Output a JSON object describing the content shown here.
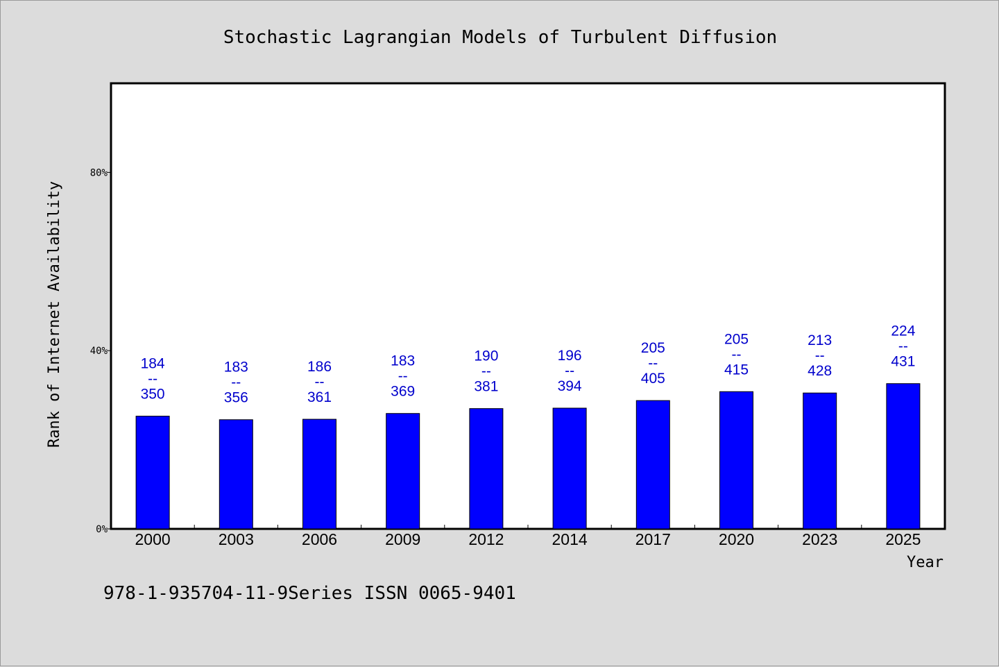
{
  "colors": {
    "background": "#dcdcdc",
    "plot_background": "#ffffff",
    "bar_fill": "#0000ff",
    "label_color": "#0000cc"
  },
  "footer": "978-1-935704-11-9Series ISSN 0065-9401",
  "chart_data": {
    "type": "bar",
    "title": "Stochastic Lagrangian Models of Turbulent Diffusion",
    "xlabel": "Year",
    "ylabel": "Rank of Internet Availability",
    "categories": [
      "2000",
      "2003",
      "2006",
      "2009",
      "2012",
      "2014",
      "2017",
      "2020",
      "2023",
      "2025"
    ],
    "series": [
      {
        "values": [
          25.3,
          24.5,
          24.6,
          25.9,
          27.0,
          27.1,
          28.8,
          30.8,
          30.5,
          32.6
        ]
      }
    ],
    "data_labels": [
      [
        "184",
        "--",
        "350"
      ],
      [
        "183",
        "--",
        "356"
      ],
      [
        "186",
        "--",
        "361"
      ],
      [
        "183",
        "--",
        "369"
      ],
      [
        "190",
        "--",
        "381"
      ],
      [
        "196",
        "--",
        "394"
      ],
      [
        "205",
        "--",
        "405"
      ],
      [
        "205",
        "--",
        "415"
      ],
      [
        "213",
        "--",
        "428"
      ],
      [
        "224",
        "--",
        "431"
      ]
    ],
    "ylim": [
      0,
      100
    ],
    "yticks": [
      0,
      40,
      80
    ],
    "ytick_labels": [
      "0%",
      "40%",
      "80%"
    ],
    "grid": false,
    "legend": "none"
  }
}
